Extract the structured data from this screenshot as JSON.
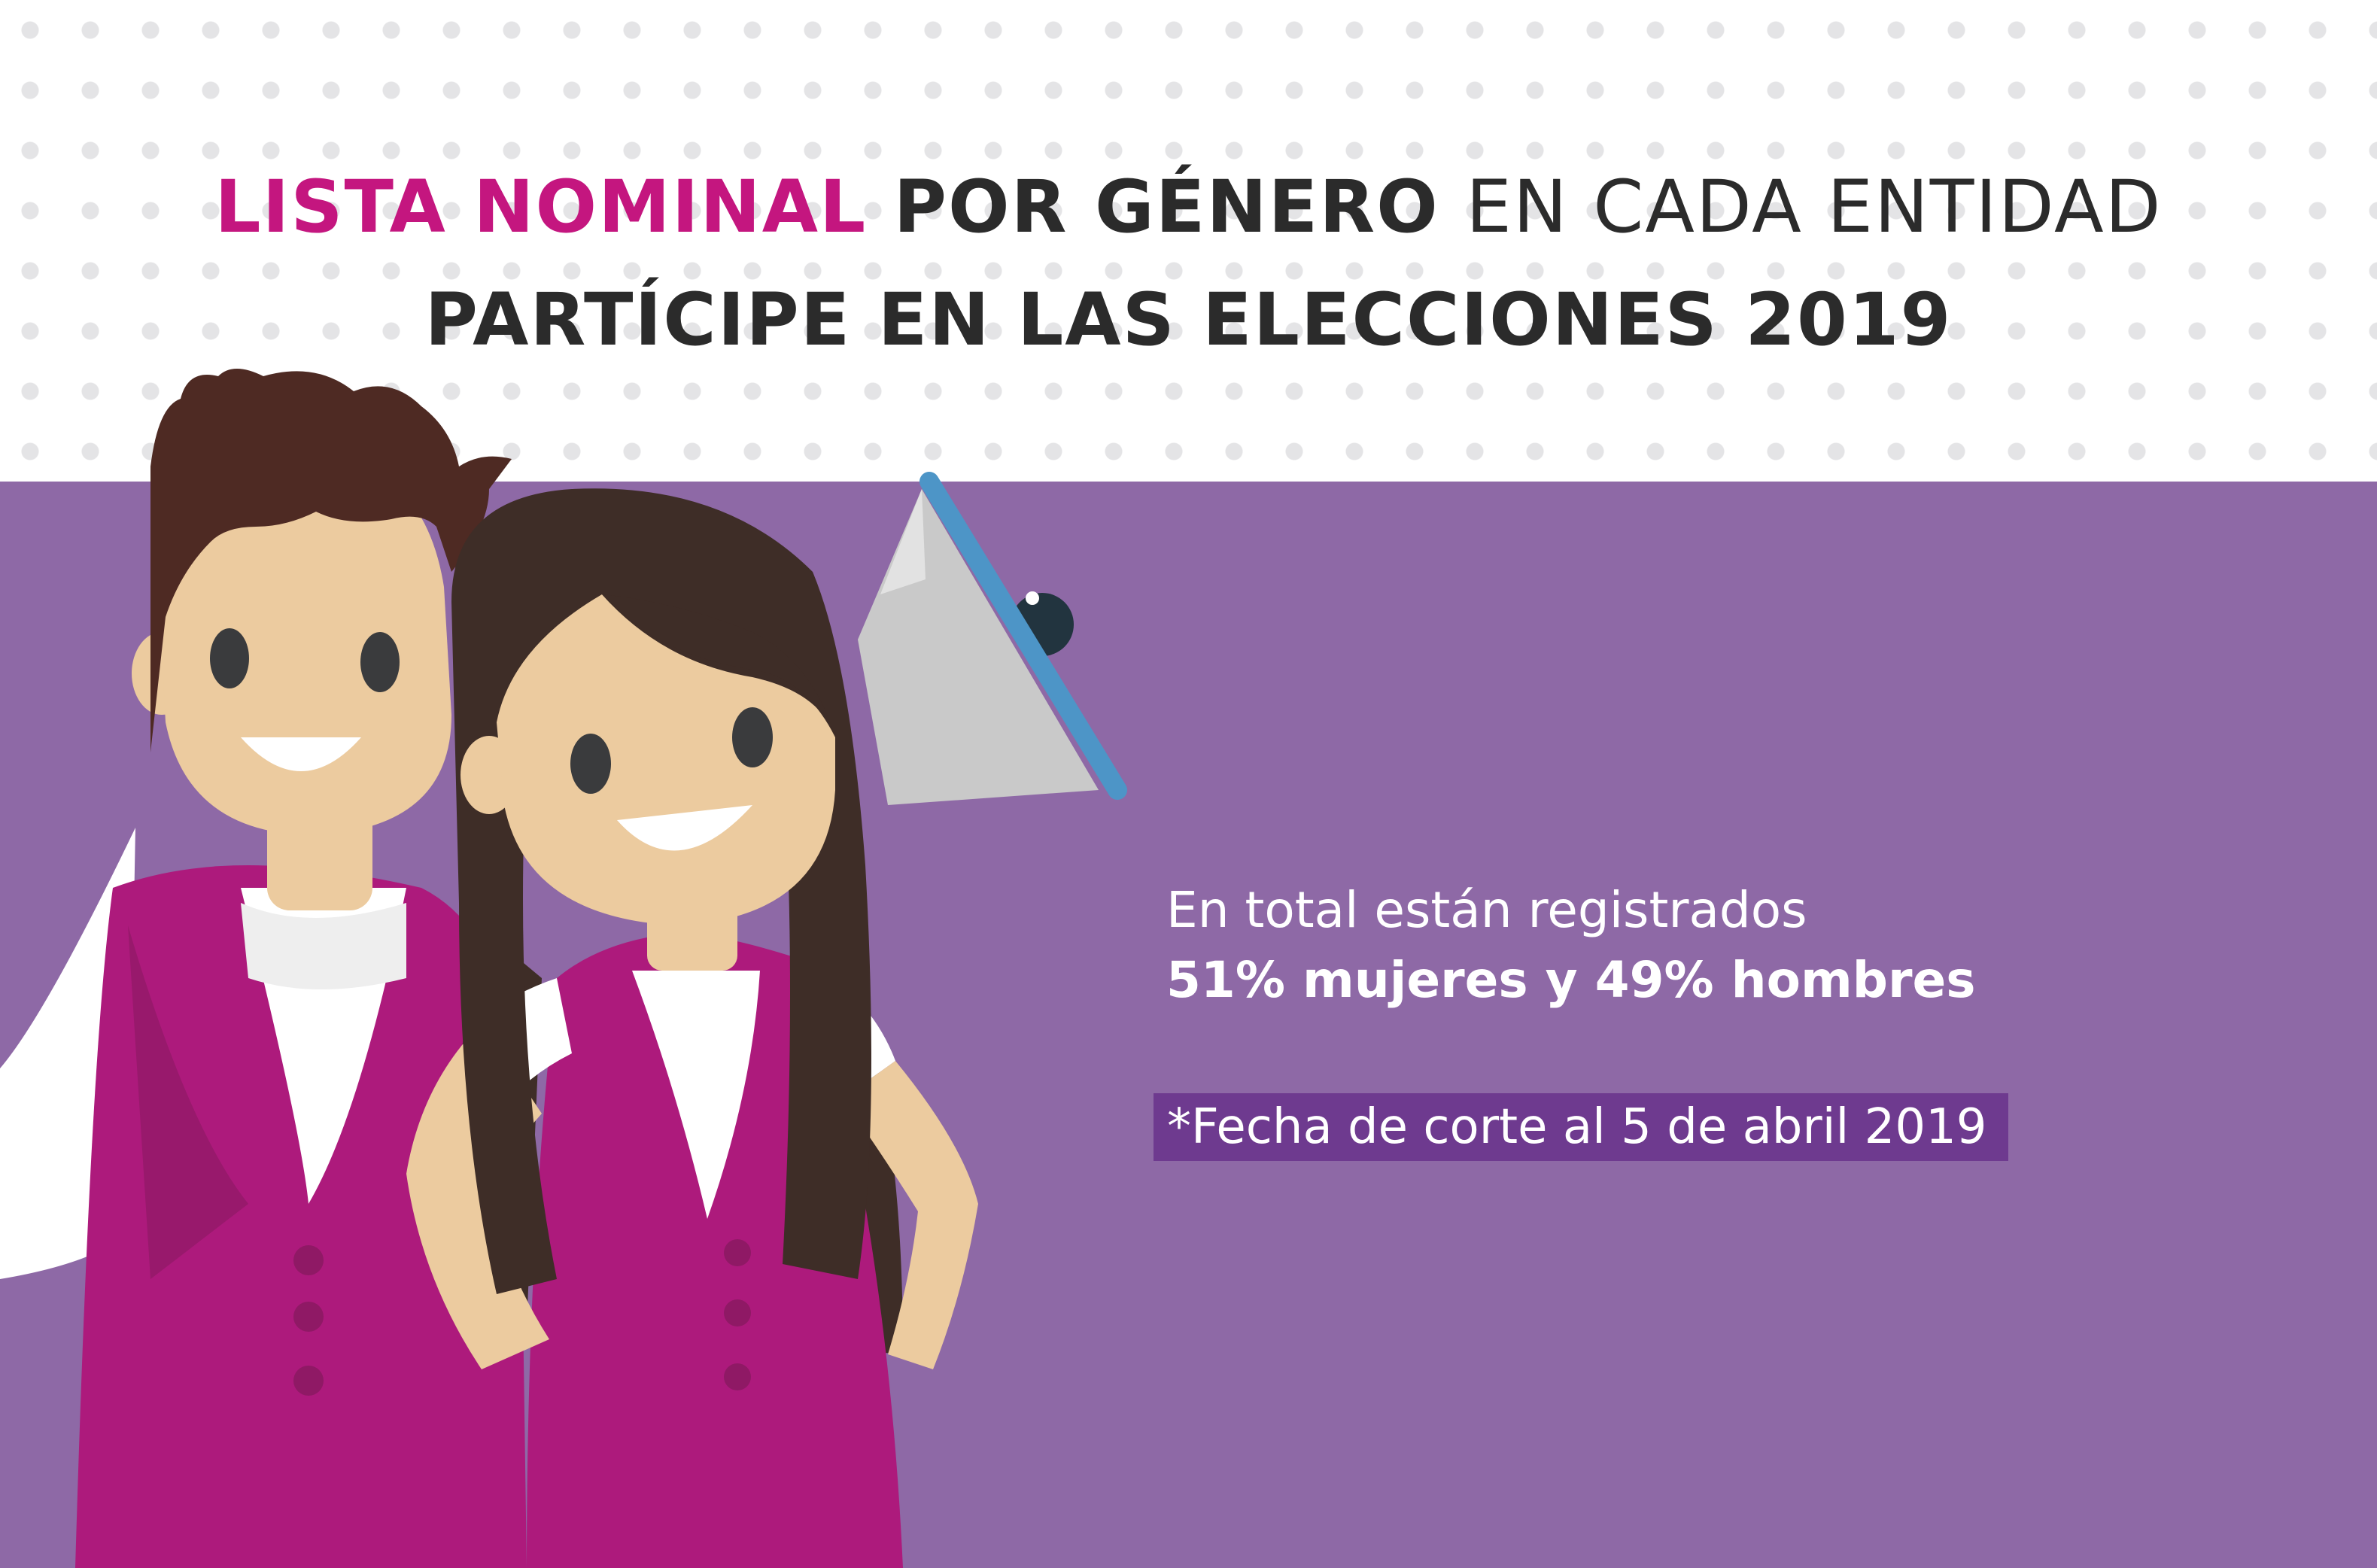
{
  "title": {
    "part1_highlight": "LISTA NOMINAL",
    "part2_bold": "POR GÉNERO",
    "part3": "EN CADA ENTIDAD",
    "line2": "PARTÍCIPE EN LAS ELECCIONES 2019"
  },
  "info": {
    "line1": "En total están registrados",
    "line2": "51% mujeres y 49% hombres"
  },
  "note": "*Fecha de corte al 5 de abril 2019",
  "illustration": {
    "characters": [
      "man-figure",
      "woman-figure"
    ],
    "props": [
      "megaphone-icon"
    ]
  },
  "colors": {
    "accent_pink": "#c4167f",
    "band_purple": "#8e69a6",
    "note_bg": "#6e3a8f",
    "vest_magenta": "#ad1a7c"
  }
}
